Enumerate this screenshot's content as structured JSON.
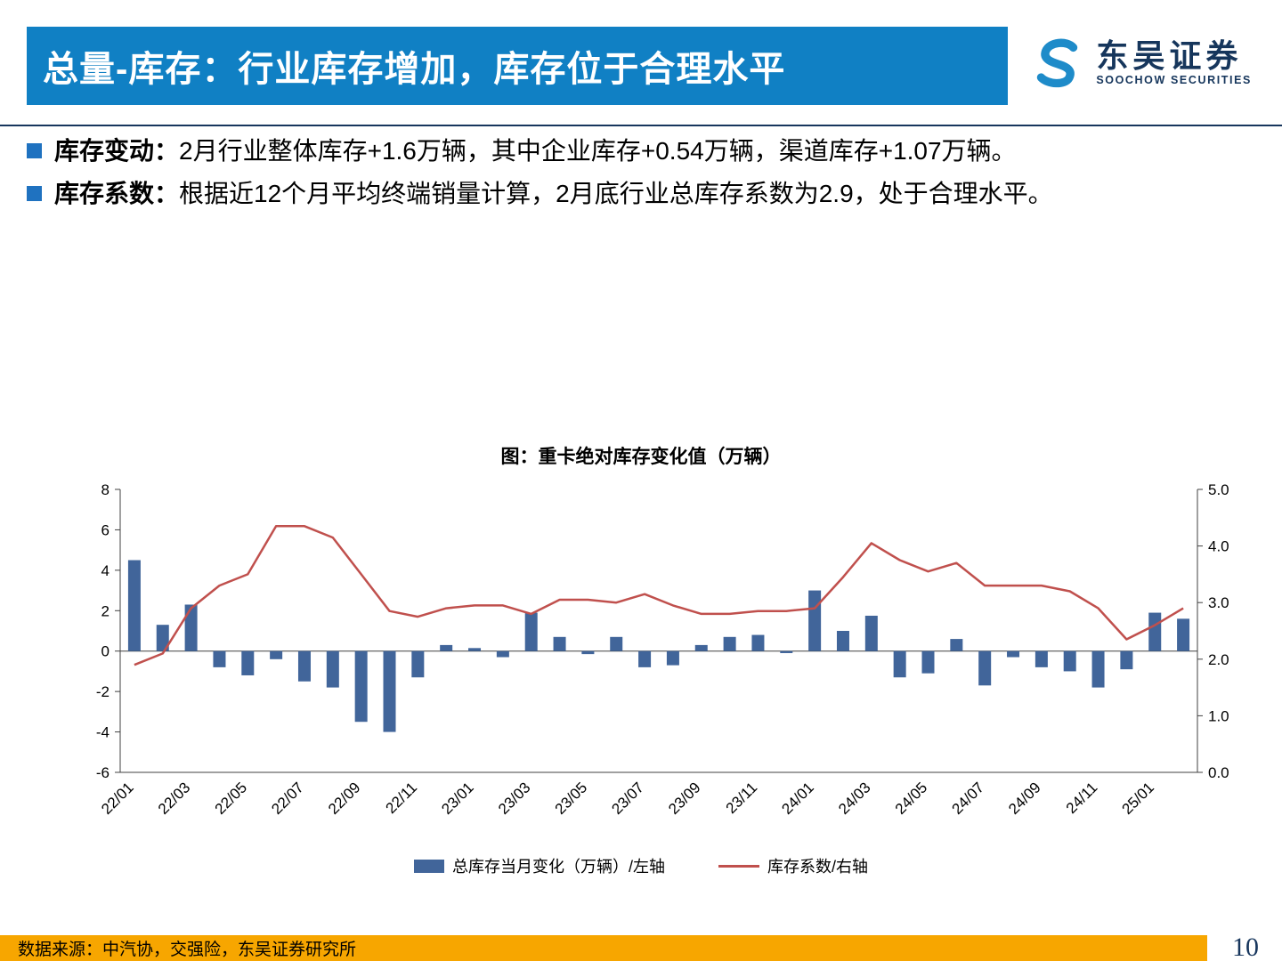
{
  "colors": {
    "header_bar": "#1080C4",
    "header_rule": "#17365D",
    "bullet": "#1F72C0",
    "bar": "#41659A",
    "line": "#C0504D",
    "footer_bar": "#F7A600",
    "page_number": "#17365D",
    "brand": "#16365C"
  },
  "header": {
    "title": "总量-库存：行业库存增加，库存位于合理水平",
    "logo": {
      "name": "东吴证券",
      "subtitle": "SOOCHOW SECURITIES"
    }
  },
  "bullets": [
    {
      "label": "库存变动：",
      "text": "2月行业整体库存+1.6万辆，其中企业库存+0.54万辆，渠道库存+1.07万辆。"
    },
    {
      "label": "库存系数：",
      "text": "根据近12个月平均终端销量计算，2月底行业总库存系数为2.9，处于合理水平。"
    }
  ],
  "chart_data": {
    "type": "combo",
    "title": "图：重卡绝对库存变化值（万辆）",
    "x": [
      "22/01",
      "22/02",
      "22/03",
      "22/04",
      "22/05",
      "22/06",
      "22/07",
      "22/08",
      "22/09",
      "22/10",
      "22/11",
      "22/12",
      "23/01",
      "23/02",
      "23/03",
      "23/04",
      "23/05",
      "23/06",
      "23/07",
      "23/08",
      "23/09",
      "23/10",
      "23/11",
      "23/12",
      "24/01",
      "24/02",
      "24/03",
      "24/04",
      "24/05",
      "24/06",
      "24/07",
      "24/08",
      "24/09",
      "24/10",
      "24/11",
      "24/12",
      "25/01",
      "25/02"
    ],
    "x_tick_labels": [
      "22/01",
      "22/03",
      "22/05",
      "22/07",
      "22/09",
      "22/11",
      "23/01",
      "23/03",
      "23/05",
      "23/07",
      "23/09",
      "23/11",
      "24/01",
      "24/03",
      "24/05",
      "24/07",
      "24/09",
      "24/11",
      "25/01"
    ],
    "series": [
      {
        "name": "总库存当月变化（万辆）/左轴",
        "type": "bar",
        "axis": "left",
        "color": "#41659A",
        "values": [
          4.5,
          1.3,
          2.3,
          -0.8,
          -1.2,
          -0.4,
          -1.5,
          -1.8,
          -3.5,
          -4.0,
          -1.3,
          0.3,
          0.15,
          -0.3,
          1.9,
          0.7,
          -0.15,
          0.7,
          -0.8,
          -0.7,
          0.3,
          0.7,
          0.8,
          -0.1,
          3.0,
          1.0,
          1.75,
          -1.3,
          -1.1,
          0.6,
          -1.7,
          -0.3,
          -0.8,
          -1.0,
          -1.8,
          -0.9,
          1.9,
          1.6
        ]
      },
      {
        "name": "库存系数/右轴",
        "type": "line",
        "axis": "right",
        "color": "#C0504D",
        "values": [
          1.9,
          2.1,
          2.9,
          3.3,
          3.5,
          4.35,
          4.35,
          4.15,
          3.5,
          2.85,
          2.75,
          2.9,
          2.95,
          2.95,
          2.8,
          3.05,
          3.05,
          3.0,
          3.15,
          2.95,
          2.8,
          2.8,
          2.85,
          2.85,
          2.9,
          3.45,
          4.05,
          3.75,
          3.55,
          3.7,
          3.3,
          3.3,
          3.3,
          3.2,
          2.9,
          2.35,
          2.6,
          2.9
        ]
      }
    ],
    "left_axis": {
      "min": -6,
      "max": 8,
      "ticks": [
        8,
        6,
        4,
        2,
        0,
        -2,
        -4,
        -6
      ]
    },
    "right_axis": {
      "min": 0,
      "max": 5,
      "ticks": [
        "5.0",
        "4.0",
        "3.0",
        "2.0",
        "1.0",
        "0.0"
      ]
    },
    "grid": false,
    "legend_position": "bottom"
  },
  "footer": {
    "source": "数据来源：中汽协，交强险，东吴证券研究所",
    "page": "10"
  }
}
